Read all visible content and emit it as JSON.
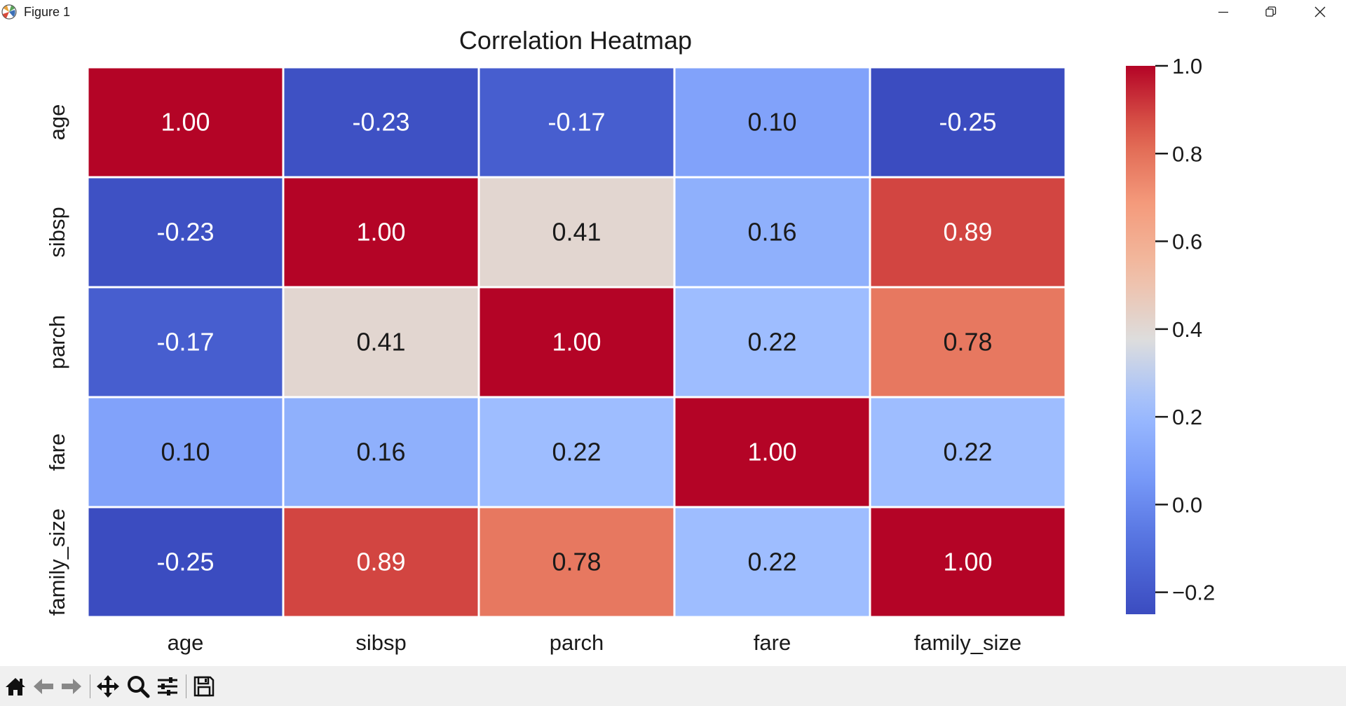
{
  "window": {
    "title": "Figure 1",
    "buttons": [
      "minimize",
      "restore",
      "close"
    ]
  },
  "toolbar": {
    "buttons": [
      {
        "name": "home",
        "icon": "home-icon"
      },
      {
        "name": "back",
        "icon": "arrow-left-icon"
      },
      {
        "name": "forward",
        "icon": "arrow-right-icon"
      },
      {
        "name": "pan",
        "icon": "move-icon"
      },
      {
        "name": "zoom",
        "icon": "zoom-icon"
      },
      {
        "name": "configure-subplots",
        "icon": "sliders-icon"
      },
      {
        "name": "save",
        "icon": "save-icon"
      }
    ]
  },
  "chart_data": {
    "type": "heatmap",
    "title": "Correlation Heatmap",
    "x_labels": [
      "age",
      "sibsp",
      "parch",
      "fare",
      "family_size"
    ],
    "y_labels": [
      "age",
      "sibsp",
      "parch",
      "fare",
      "family_size"
    ],
    "values": [
      [
        1.0,
        -0.23,
        -0.17,
        0.1,
        -0.25
      ],
      [
        -0.23,
        1.0,
        0.41,
        0.16,
        0.89
      ],
      [
        -0.17,
        0.41,
        1.0,
        0.22,
        0.78
      ],
      [
        0.1,
        0.16,
        0.22,
        1.0,
        0.22
      ],
      [
        -0.25,
        0.89,
        0.78,
        0.22,
        1.0
      ]
    ],
    "cell_labels": [
      [
        "1.00",
        "-0.23",
        "-0.17",
        "0.10",
        "-0.25"
      ],
      [
        "-0.23",
        "1.00",
        "0.41",
        "0.16",
        "0.89"
      ],
      [
        "-0.17",
        "0.41",
        "1.00",
        "0.22",
        "0.78"
      ],
      [
        "0.10",
        "0.16",
        "0.22",
        "1.00",
        "0.22"
      ],
      [
        "-0.25",
        "0.89",
        "0.78",
        "0.22",
        "1.00"
      ]
    ],
    "colormap": "coolwarm",
    "vmin": -0.25,
    "vmax": 1.0,
    "colorbar_ticks": [
      1.0,
      0.8,
      0.6,
      0.4,
      0.2,
      0.0,
      -0.2
    ],
    "colorbar_tick_labels": [
      "1.0",
      "0.8",
      "0.6",
      "0.4",
      "0.2",
      "0.0",
      "−0.2"
    ],
    "cell_border_color": "#ffffff"
  }
}
